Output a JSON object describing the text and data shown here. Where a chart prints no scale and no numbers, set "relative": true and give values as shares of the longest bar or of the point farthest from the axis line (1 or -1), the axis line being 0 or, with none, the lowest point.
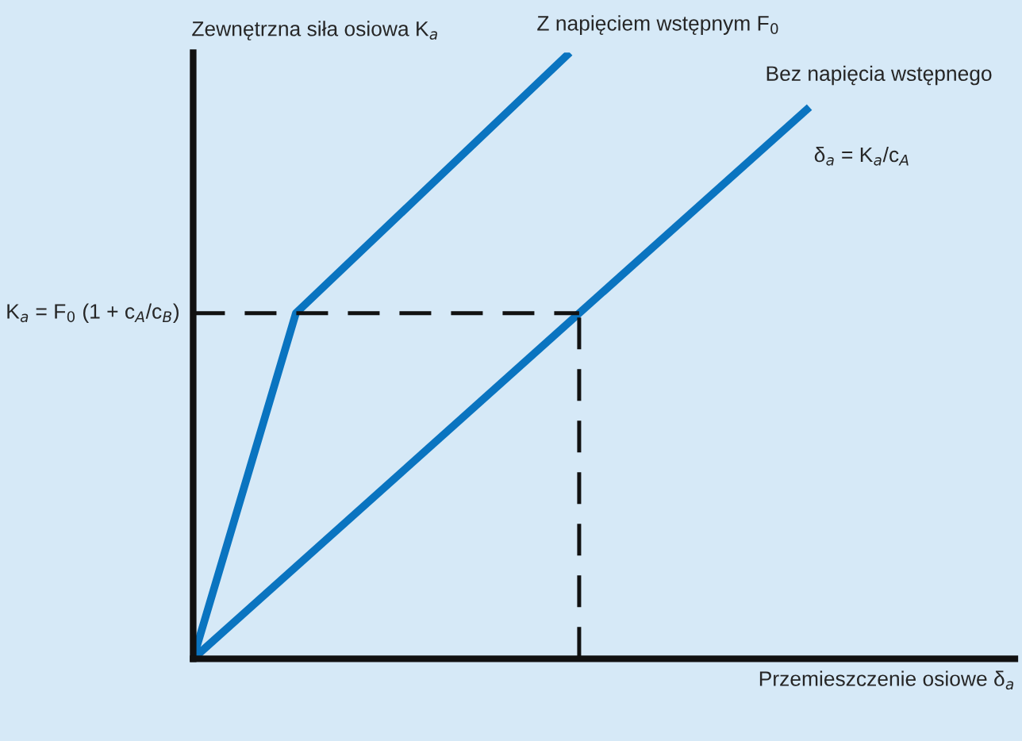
{
  "chart_data": {
    "type": "line",
    "relative": true,
    "xlabel": "Przemieszczenie osiowe δ$_{a}$",
    "ylabel": "Zewnętrzna siła osiowa K$_{a}$",
    "categories": [
      null,
      null,
      null,
      null,
      null,
      null,
      null,
      null,
      null,
      null,
      null,
      null,
      null,
      null,
      null,
      null,
      null,
      null,
      null,
      null,
      null,
      null,
      null,
      null,
      null
    ],
    "series": [
      {
        "name": "Z napięciem wstępnym F$_{0}$",
        "color": "#0a74c0",
        "values": [
          0,
          null,
          null,
          0.57,
          null,
          null,
          null,
          null,
          null,
          null,
          null,
          1,
          null,
          null,
          null,
          null,
          null,
          null,
          null,
          null,
          null,
          null,
          null,
          null,
          null
        ]
      },
      {
        "name": "Bez napięcia wstępnego",
        "color": "#0a74c0",
        "values": [
          0,
          null,
          null,
          null,
          null,
          null,
          null,
          null,
          null,
          null,
          null,
          null,
          null,
          null,
          null,
          null,
          null,
          null,
          0.91,
          null,
          null,
          null,
          null,
          null,
          null
        ]
      }
    ],
    "ref_lines": [
      {
        "axis": "y",
        "value": 0.57,
        "label": "K$_{a}$ = F$_{0}$ (1 + c$_{A}$/c$_{B}$)",
        "color": "#111111",
        "line_style": "dashed"
      }
    ],
    "annotations": [
      "δ$_{a}$ = K$_{a}$/c$_{A}$"
    ],
    "marker": "none"
  }
}
